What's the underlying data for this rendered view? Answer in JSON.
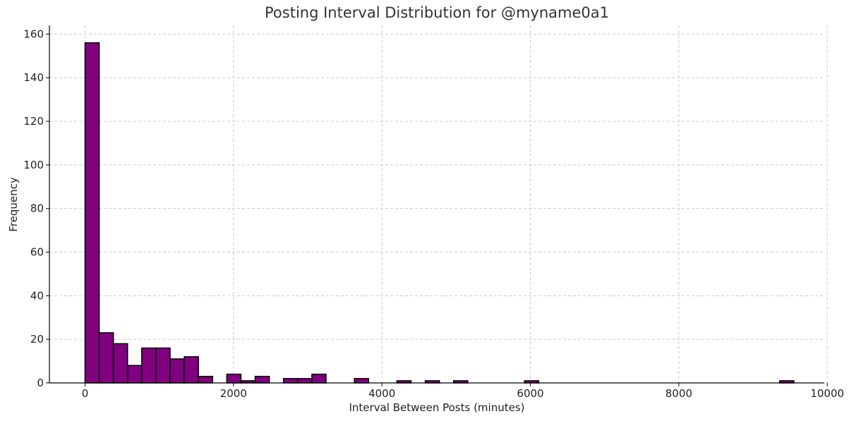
{
  "chart_data": {
    "type": "bar",
    "title": "Posting Interval Distribution for @myname0a1",
    "xlabel": "Interval Between Posts (minutes)",
    "ylabel": "Frequency",
    "xlim": [
      -480,
      9960
    ],
    "ylim": [
      0,
      164
    ],
    "xticks": [
      0,
      2000,
      4000,
      6000,
      8000,
      10000
    ],
    "yticks": [
      0,
      20,
      40,
      60,
      80,
      100,
      120,
      140,
      160
    ],
    "grid": true,
    "bin_width": 191,
    "bins": [
      {
        "start": 0,
        "count": 156
      },
      {
        "start": 191,
        "count": 23
      },
      {
        "start": 382,
        "count": 18
      },
      {
        "start": 573,
        "count": 8
      },
      {
        "start": 764,
        "count": 16
      },
      {
        "start": 955,
        "count": 16
      },
      {
        "start": 1146,
        "count": 11
      },
      {
        "start": 1337,
        "count": 12
      },
      {
        "start": 1528,
        "count": 3
      },
      {
        "start": 1910,
        "count": 4
      },
      {
        "start": 2101,
        "count": 1
      },
      {
        "start": 2292,
        "count": 3
      },
      {
        "start": 2674,
        "count": 2
      },
      {
        "start": 2865,
        "count": 2
      },
      {
        "start": 3056,
        "count": 4
      },
      {
        "start": 3629,
        "count": 2
      },
      {
        "start": 4202,
        "count": 1
      },
      {
        "start": 4584,
        "count": 1
      },
      {
        "start": 4966,
        "count": 1
      },
      {
        "start": 5921,
        "count": 1
      },
      {
        "start": 9359,
        "count": 1
      }
    ],
    "colors": {
      "bar_fill": "#800080",
      "bar_edge": "#000000",
      "grid": "#cccccc"
    }
  }
}
